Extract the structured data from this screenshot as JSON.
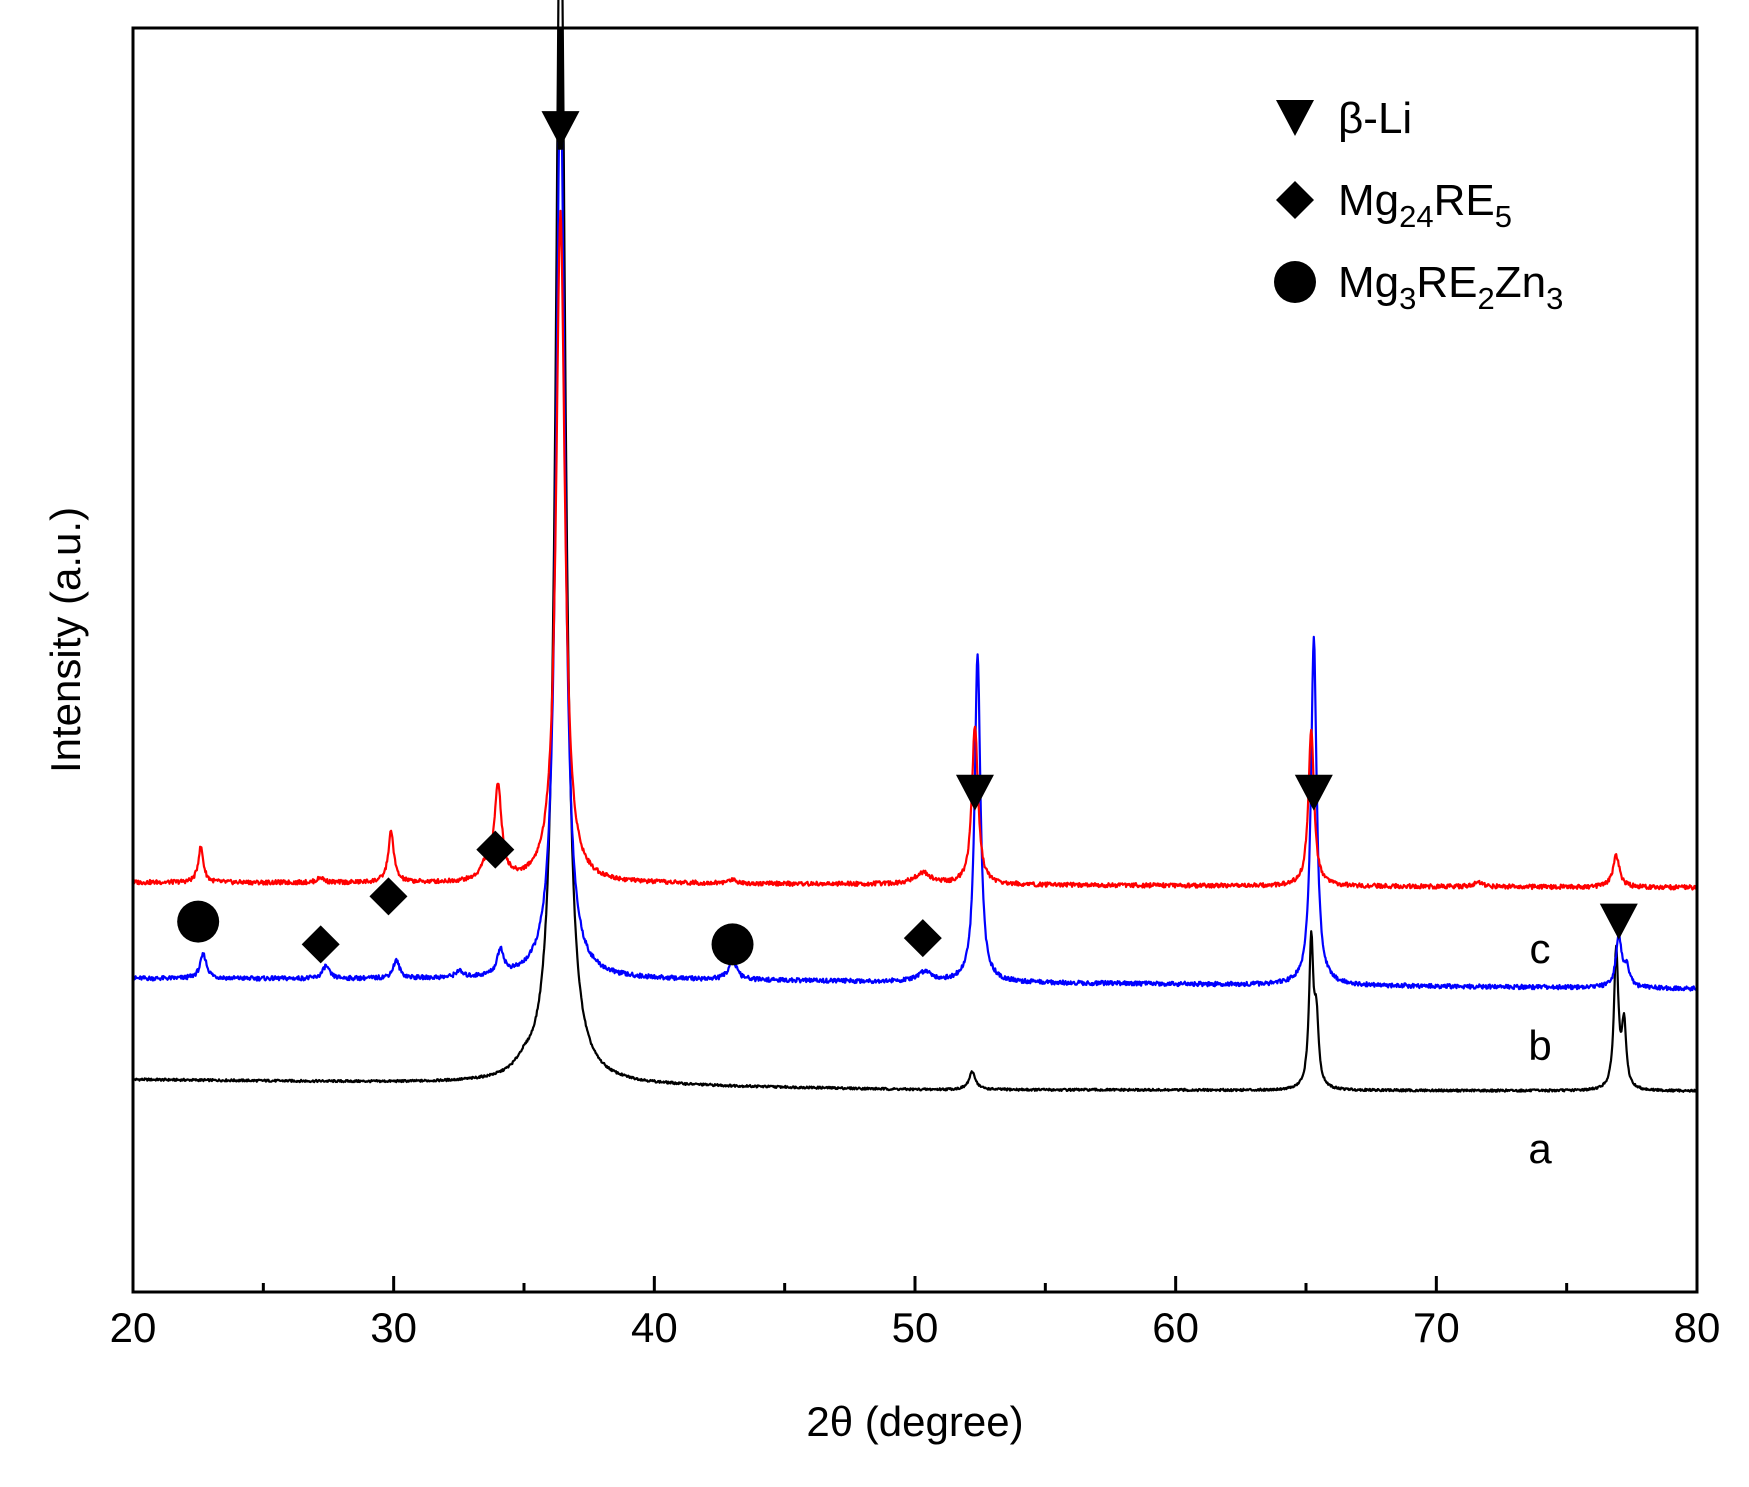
{
  "chart_data": {
    "type": "line",
    "title": "",
    "xlabel": "2θ (degree)",
    "ylabel": "Intensity (a.u.)",
    "xlim": [
      20,
      80
    ],
    "ylim": [
      0,
      100
    ],
    "xticks": [
      20,
      30,
      40,
      50,
      60,
      70,
      80
    ],
    "grid": false,
    "legend_position": "top-right",
    "legend": [
      {
        "marker": "triangle-down",
        "label": "β-Li",
        "base": "β-Li",
        "sub1": "",
        "mid": "",
        "sub2": "",
        "tail": "",
        "sub3": ""
      },
      {
        "marker": "diamond",
        "label": "Mg24RE5",
        "base": "Mg",
        "sub1": "24",
        "mid": "RE",
        "sub2": "5",
        "tail": "",
        "sub3": ""
      },
      {
        "marker": "circle",
        "label": "Mg3RE2Zn3",
        "base": "Mg",
        "sub1": "3",
        "mid": "RE",
        "sub2": "2",
        "tail": "Zn",
        "sub3": "3"
      }
    ],
    "series": [
      {
        "name": "a",
        "label": "a",
        "color": "#000000",
        "baseline": [
          [
            20,
            16.8
          ],
          [
            37,
            16.4
          ],
          [
            50,
            16.0
          ],
          [
            80,
            15.9
          ]
        ],
        "peaks": [
          [
            35.0,
            0.7,
            0.4
          ],
          [
            36.4,
            97,
            0.22
          ],
          [
            52.2,
            1.4,
            0.15
          ],
          [
            65.2,
            11.5,
            0.1
          ],
          [
            65.4,
            5,
            0.1
          ],
          [
            76.9,
            11,
            0.1
          ],
          [
            77.2,
            5,
            0.1
          ]
        ]
      },
      {
        "name": "b",
        "label": "b",
        "color": "#0000ff",
        "baseline": [
          [
            20,
            24.8
          ],
          [
            40,
            24.7
          ],
          [
            80,
            24.0
          ]
        ],
        "peaks": [
          [
            22.7,
            1.9,
            0.15
          ],
          [
            27.4,
            1.0,
            0.15
          ],
          [
            30.1,
            1.4,
            0.15
          ],
          [
            32.5,
            0.5,
            0.15
          ],
          [
            34.1,
            2.0,
            0.15
          ],
          [
            36.4,
            72,
            0.2
          ],
          [
            43.0,
            1.6,
            0.18
          ],
          [
            50.4,
            0.8,
            0.3
          ],
          [
            52.4,
            26,
            0.13
          ],
          [
            65.3,
            27.5,
            0.13
          ],
          [
            77.0,
            4.0,
            0.13
          ],
          [
            77.3,
            1.5,
            0.13
          ]
        ]
      },
      {
        "name": "c",
        "label": "c",
        "color": "#ff0000",
        "baseline": [
          [
            20,
            32.4
          ],
          [
            40,
            32.3
          ],
          [
            80,
            32.0
          ]
        ],
        "peaks": [
          [
            22.6,
            2.8,
            0.12
          ],
          [
            27.2,
            0.4,
            0.15
          ],
          [
            29.9,
            4.0,
            0.13
          ],
          [
            33.5,
            1.0,
            0.2
          ],
          [
            34.0,
            7.5,
            0.17
          ],
          [
            36.4,
            53,
            0.2
          ],
          [
            43.0,
            0.3,
            0.2
          ],
          [
            50.3,
            0.9,
            0.4
          ],
          [
            52.3,
            12.5,
            0.14
          ],
          [
            65.2,
            12.3,
            0.13
          ],
          [
            71.6,
            0.3,
            0.2
          ],
          [
            76.9,
            2.5,
            0.15
          ]
        ]
      }
    ],
    "phase_markers": [
      {
        "type": "triangle-down",
        "x": 36.4,
        "y": 92.0
      },
      {
        "type": "triangle-down",
        "x": 52.3,
        "y": 39.5
      },
      {
        "type": "triangle-down",
        "x": 65.3,
        "y": 39.5
      },
      {
        "type": "triangle-down",
        "x": 77.0,
        "y": 29.3
      },
      {
        "type": "diamond",
        "x": 27.2,
        "y": 27.5
      },
      {
        "type": "diamond",
        "x": 29.8,
        "y": 31.3
      },
      {
        "type": "diamond",
        "x": 33.9,
        "y": 35.0
      },
      {
        "type": "diamond",
        "x": 50.3,
        "y": 28.0
      },
      {
        "type": "circle",
        "x": 22.5,
        "y": 29.3
      },
      {
        "type": "circle",
        "x": 43.0,
        "y": 27.5
      }
    ],
    "annotations": [
      {
        "type": "arrow",
        "x": 36.4,
        "y_from": 100,
        "y_to": 91
      }
    ]
  }
}
